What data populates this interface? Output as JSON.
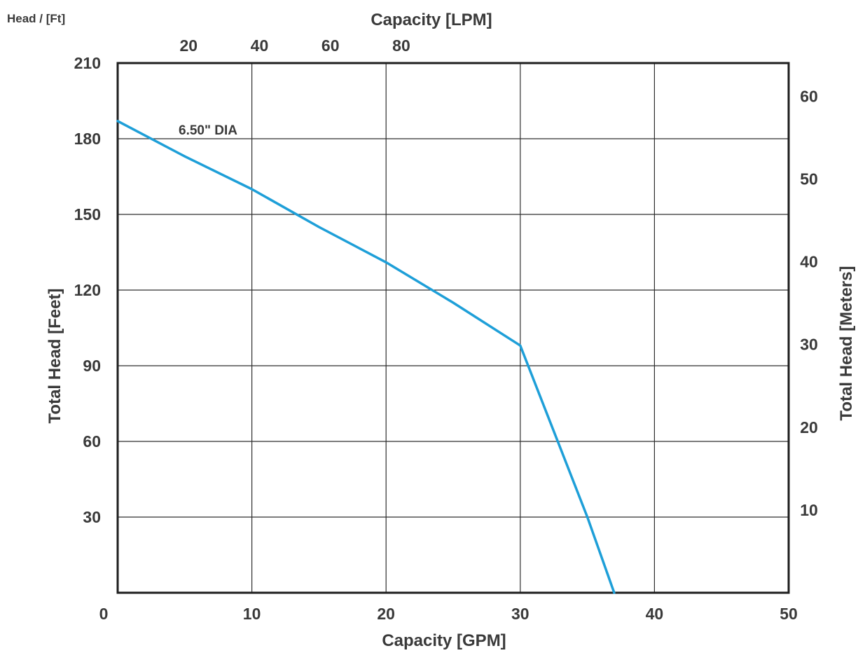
{
  "chart_data": {
    "type": "line",
    "corner_label": "Head / [Ft]",
    "title": "",
    "xlabel": "Capacity [GPM]",
    "x2label": "Capacity [LPM]",
    "ylabel": "Total Head [Feet]",
    "y2label": "Total Head [Meters]",
    "xlim": [
      0,
      50
    ],
    "ylim": [
      0,
      210
    ],
    "x_ticks": [
      "0",
      "10",
      "20",
      "30",
      "40",
      "50"
    ],
    "x_tick_values": [
      0,
      10,
      20,
      30,
      40,
      50
    ],
    "y_ticks": [
      "30",
      "60",
      "90",
      "120",
      "150",
      "180",
      "210"
    ],
    "y_tick_values": [
      30,
      60,
      90,
      120,
      150,
      180,
      210
    ],
    "x2_ticks": [
      "20",
      "40",
      "60",
      "80"
    ],
    "x2_tick_values": [
      20,
      40,
      60,
      80
    ],
    "x2_unit_per_x": 3.785,
    "y2_ticks": [
      "10",
      "20",
      "30",
      "40",
      "50",
      "60"
    ],
    "y2_tick_values": [
      10,
      20,
      30,
      40,
      50,
      60
    ],
    "y2_unit_per_y": 0.3048,
    "grid": true,
    "series": [
      {
        "name": "6.50\" DIA",
        "color": "#1e9fd8",
        "x": [
          0,
          5,
          10,
          15,
          20,
          25,
          30,
          35,
          37
        ],
        "y": [
          187,
          173,
          160,
          145,
          131,
          115,
          98,
          30,
          0
        ]
      }
    ]
  }
}
